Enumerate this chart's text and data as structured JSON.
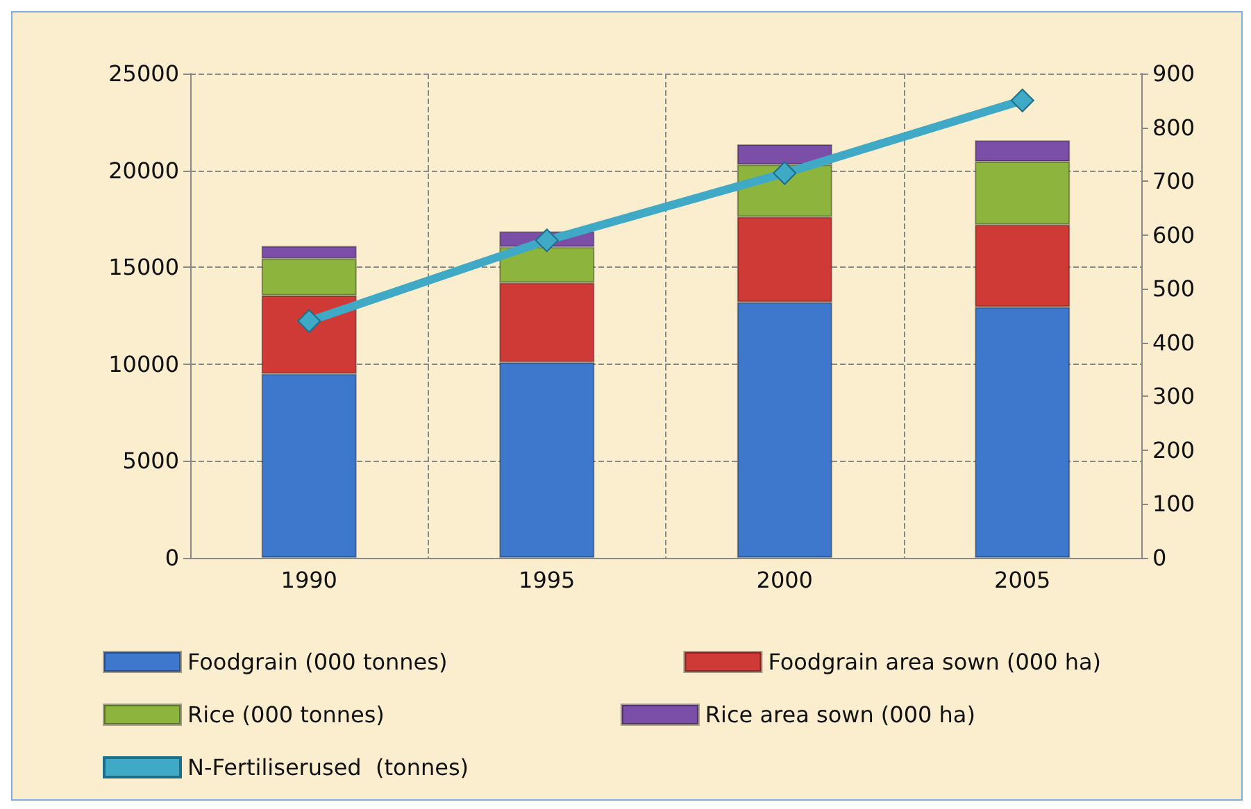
{
  "chart_data": {
    "type": "bar",
    "stacked": true,
    "categories": [
      "1990",
      "1995",
      "2000",
      "2005"
    ],
    "series": [
      {
        "name": "Foodgrain (000 tonnes)",
        "color": "#3d78cc",
        "values": [
          9500,
          10100,
          13200,
          12950
        ]
      },
      {
        "name": "Foodgrain area sown (000 ha)",
        "color": "#d03a36",
        "values": [
          4050,
          4100,
          4400,
          4250
        ]
      },
      {
        "name": "Rice (000 tonnes)",
        "color": "#8db53e",
        "values": [
          1900,
          1850,
          2700,
          3250
        ]
      },
      {
        "name": "Rice area sown (000 ha)",
        "color": "#7b4fa8",
        "values": [
          650,
          800,
          1050,
          1100
        ]
      },
      {
        "name": "N-Fertiliserused  (tonnes)",
        "type": "line",
        "axis": "y2",
        "color": "#3fa9c6",
        "marker": "diamond",
        "values": [
          440,
          590,
          715,
          850
        ]
      }
    ],
    "ylim": [
      0,
      25000
    ],
    "yticks": [
      0,
      5000,
      10000,
      15000,
      20000,
      25000
    ],
    "y2lim": [
      0,
      900
    ],
    "y2ticks": [
      0,
      100,
      200,
      300,
      400,
      500,
      600,
      700,
      800,
      900
    ],
    "grid": true,
    "legend": "bottom"
  }
}
